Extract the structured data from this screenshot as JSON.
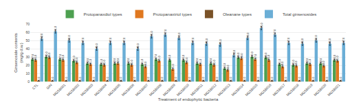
{
  "chart_data": {
    "type": "bar",
    "xlabel": "Treatment of endophytic bacteria",
    "ylabel": "Ginsenoside contents\n(mg/g d.w.)",
    "categories": [
      "CTL",
      "GIN",
      "MGSB001",
      "MGSB002",
      "MGSB003",
      "MGSB004",
      "MGSB005",
      "MGSB006",
      "MGSB007",
      "MGSB008",
      "MGSB009",
      "MGSB010",
      "MGSB011",
      "MGSB012",
      "MGSB013",
      "MGSB014",
      "MGSB015",
      "MGSB016",
      "MGSB017",
      "MGSB018",
      "MGSB019",
      "MGSB020",
      "MGSB021"
    ],
    "series": [
      {
        "name": "Protopanaxdiol types",
        "color": "#4da050",
        "values": [
          27,
          30,
          27,
          25,
          22,
          21,
          22,
          22,
          21,
          27,
          26,
          26,
          22,
          22,
          16,
          29,
          30,
          29,
          21,
          20,
          22,
          22,
          26
        ],
        "value_labels": [
          "27.0",
          "30.0",
          "27.0",
          "25.0",
          "22.0",
          "21.0",
          "22.0",
          "22.0",
          "21.0",
          "27.0",
          "26.0",
          "26.0",
          "22.0",
          "22.0",
          "16.0",
          "29.0",
          "30.0",
          "29.0",
          "21.0",
          "20.0",
          "22.0",
          "22.0",
          "26.0"
        ],
        "errors": [
          1.2,
          1.2,
          1.2,
          1.2,
          1.2,
          1.2,
          1.2,
          1.2,
          1.2,
          1.2,
          1.2,
          1.2,
          1.2,
          1.2,
          1.2,
          1.2,
          1.2,
          1.2,
          1.2,
          1.2,
          1.2,
          1.2,
          1.2
        ]
      },
      {
        "name": "Protopanaxtriol types",
        "color": "#e07820",
        "values": [
          26,
          29,
          26,
          23,
          21,
          20,
          22,
          20,
          18,
          25,
          15,
          23,
          21,
          20,
          14,
          28,
          27,
          26,
          18,
          19,
          21,
          19,
          25
        ],
        "value_labels": [
          "26.0",
          "29.0",
          "26.0",
          "23.0",
          "21.0",
          "20.0",
          "22.0",
          "20.0",
          "18.0",
          "25.0",
          "15.0",
          "23.0",
          "21.0",
          "20.0",
          "14.0",
          "28.0",
          "27.0",
          "26.0",
          "18.0",
          "19.0",
          "21.0",
          "19.0",
          "25.0"
        ],
        "errors": [
          1.2,
          1.2,
          1.2,
          1.2,
          1.2,
          1.2,
          1.2,
          1.2,
          1.2,
          1.2,
          1.2,
          1.2,
          1.2,
          1.2,
          1.2,
          1.2,
          1.2,
          1.2,
          1.2,
          1.2,
          1.2,
          1.2,
          1.2
        ]
      },
      {
        "name": "Oleanane types",
        "color": "#7a5228",
        "values": [
          1,
          1,
          1,
          1,
          1,
          1,
          1,
          1,
          1,
          1,
          1,
          1,
          1,
          1,
          1,
          1,
          1,
          1,
          1,
          1,
          1,
          1,
          1
        ],
        "value_labels": [
          "1.0",
          "1.0",
          "1.0",
          "1.0",
          "1.0",
          "1.0",
          "1.0",
          "1.0",
          "1.0",
          "1.0",
          "1.0",
          "1.0",
          "1.0",
          "1.0",
          "1.0",
          "1.0",
          "1.0",
          "1.0",
          "1.0",
          "1.0",
          "1.0",
          "1.0",
          "1.0"
        ],
        "errors": [
          0.2,
          0.2,
          0.2,
          0.2,
          0.2,
          0.2,
          0.2,
          0.2,
          0.2,
          0.2,
          0.2,
          0.2,
          0.2,
          0.2,
          0.2,
          0.2,
          0.2,
          0.2,
          0.2,
          0.2,
          0.2,
          0.2,
          0.2
        ]
      },
      {
        "name": "Total ginsenosides",
        "color": "#6baed6",
        "values": [
          52,
          61,
          50,
          47,
          40,
          47,
          47,
          40,
          55,
          57,
          53,
          47,
          46,
          45,
          32,
          53,
          65,
          57,
          47,
          46,
          50,
          46,
          47
        ],
        "value_labels": [
          "52.0",
          "61.0",
          "50.0",
          "47.0",
          "40.0",
          "47.0",
          "47.0",
          "40.0",
          "55.0",
          "57.0",
          "53.0",
          "47.0",
          "46.0",
          "45.0",
          "32.0",
          "53.0",
          "65.0",
          "57.0",
          "47.0",
          "46.0",
          "50.0",
          "46.0",
          "47.0"
        ],
        "errors": [
          2.0,
          2.0,
          2.0,
          2.0,
          2.0,
          2.0,
          2.0,
          2.0,
          2.0,
          2.0,
          2.0,
          2.0,
          2.0,
          2.0,
          2.0,
          2.0,
          2.0,
          2.0,
          2.0,
          2.0,
          2.0,
          2.0,
          2.0
        ]
      }
    ],
    "ylim": [
      0,
      70
    ],
    "yticks": [
      0,
      10,
      20,
      30,
      40,
      50,
      60,
      70
    ],
    "grid": true,
    "legend": "top",
    "data_labels": true
  }
}
